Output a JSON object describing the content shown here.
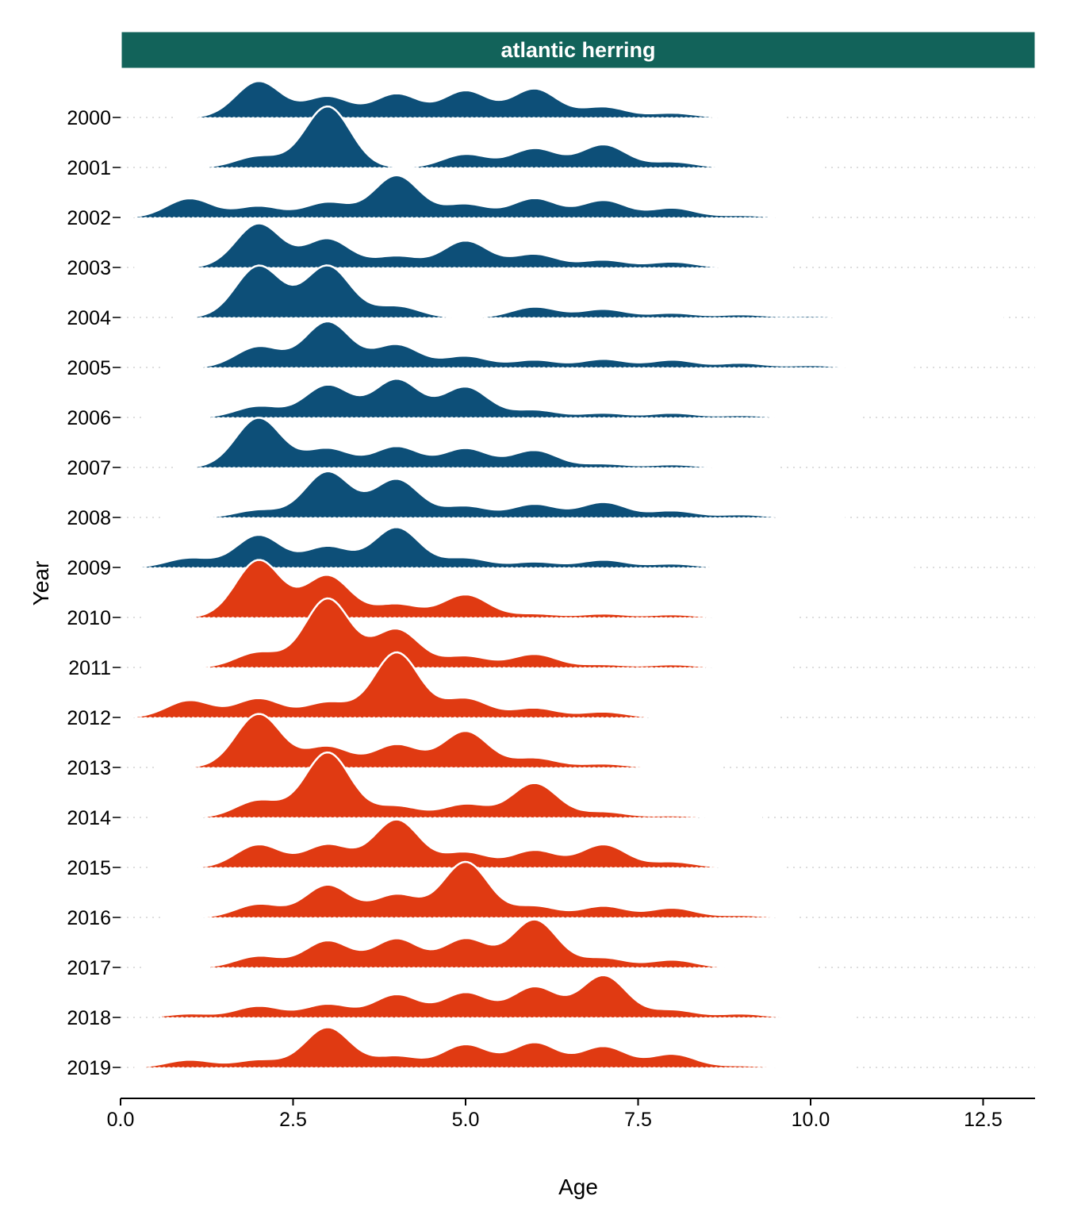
{
  "chart_data": {
    "type": "ridgeline",
    "facet_title": "atlantic herring",
    "xlabel": "Age",
    "ylabel": "Year",
    "xlim": [
      0,
      13.25
    ],
    "x_ticks": [
      "0.0",
      "2.5",
      "5.0",
      "7.5",
      "10.0",
      "12.5"
    ],
    "grid": false,
    "colors": {
      "facet_strip": "#12635a",
      "early_period": "#0d4f78",
      "late_period": "#e03a12",
      "outline": "#ffffff"
    },
    "series": [
      {
        "name": "2000",
        "group": "early",
        "range": [
          0.8,
          9.6
        ],
        "peaks": [
          [
            2.0,
            0.95
          ],
          [
            3.0,
            0.55
          ],
          [
            4.0,
            0.62
          ],
          [
            5.0,
            0.7
          ],
          [
            6.0,
            0.75
          ],
          [
            7.0,
            0.28
          ],
          [
            8.0,
            0.12
          ]
        ]
      },
      {
        "name": "2001",
        "group": "early",
        "range": [
          0.7,
          10.2
        ],
        "peaks": [
          [
            2.0,
            0.3
          ],
          [
            3.0,
            1.6
          ],
          [
            5.0,
            0.35
          ],
          [
            6.0,
            0.5
          ],
          [
            7.0,
            0.6
          ],
          [
            8.0,
            0.15
          ]
        ]
      },
      {
        "name": "2002",
        "group": "early",
        "range": [
          0.0,
          10.0
        ],
        "peaks": [
          [
            1.0,
            0.5
          ],
          [
            2.0,
            0.3
          ],
          [
            3.0,
            0.4
          ],
          [
            4.0,
            1.1
          ],
          [
            5.0,
            0.35
          ],
          [
            6.0,
            0.5
          ],
          [
            7.0,
            0.45
          ],
          [
            8.0,
            0.25
          ],
          [
            9.0,
            0.06
          ]
        ]
      },
      {
        "name": "2003",
        "group": "early",
        "range": [
          0.2,
          9.7
        ],
        "peaks": [
          [
            2.0,
            1.15
          ],
          [
            3.0,
            0.75
          ],
          [
            4.0,
            0.3
          ],
          [
            5.0,
            0.7
          ],
          [
            6.0,
            0.35
          ],
          [
            7.0,
            0.2
          ],
          [
            8.0,
            0.15
          ]
        ]
      },
      {
        "name": "2004",
        "group": "early",
        "range": [
          0.8,
          12.8
        ],
        "peaks": [
          [
            2.0,
            1.35
          ],
          [
            3.0,
            1.35
          ],
          [
            4.0,
            0.3
          ],
          [
            6.0,
            0.28
          ],
          [
            7.0,
            0.22
          ],
          [
            8.0,
            0.12
          ],
          [
            9.0,
            0.08
          ],
          [
            10.0,
            0.04
          ]
        ]
      },
      {
        "name": "2005",
        "group": "early",
        "range": [
          0.6,
          11.5
        ],
        "peaks": [
          [
            2.0,
            0.55
          ],
          [
            3.0,
            1.2
          ],
          [
            4.0,
            0.6
          ],
          [
            5.0,
            0.3
          ],
          [
            6.0,
            0.2
          ],
          [
            7.0,
            0.22
          ],
          [
            8.0,
            0.2
          ],
          [
            9.0,
            0.12
          ],
          [
            10.0,
            0.06
          ]
        ]
      },
      {
        "name": "2006",
        "group": "early",
        "range": [
          0.3,
          10.7
        ],
        "peaks": [
          [
            2.0,
            0.3
          ],
          [
            3.0,
            0.85
          ],
          [
            4.0,
            1.0
          ],
          [
            5.0,
            0.8
          ],
          [
            6.0,
            0.2
          ],
          [
            7.0,
            0.12
          ],
          [
            8.0,
            0.12
          ],
          [
            9.0,
            0.06
          ]
        ]
      },
      {
        "name": "2007",
        "group": "early",
        "range": [
          0.8,
          9.5
        ],
        "peaks": [
          [
            2.0,
            1.3
          ],
          [
            3.0,
            0.5
          ],
          [
            4.0,
            0.55
          ],
          [
            5.0,
            0.5
          ],
          [
            6.0,
            0.45
          ],
          [
            7.0,
            0.1
          ],
          [
            8.0,
            0.08
          ]
        ]
      },
      {
        "name": "2008",
        "group": "early",
        "range": [
          0.6,
          10.5
        ],
        "peaks": [
          [
            2.0,
            0.2
          ],
          [
            3.0,
            1.2
          ],
          [
            4.0,
            1.0
          ],
          [
            5.0,
            0.3
          ],
          [
            6.0,
            0.35
          ],
          [
            7.0,
            0.4
          ],
          [
            8.0,
            0.18
          ],
          [
            9.0,
            0.08
          ]
        ]
      },
      {
        "name": "2009",
        "group": "early",
        "range": [
          0.0,
          11.5
        ],
        "peaks": [
          [
            1.0,
            0.25
          ],
          [
            2.0,
            0.85
          ],
          [
            3.0,
            0.55
          ],
          [
            4.0,
            1.05
          ],
          [
            5.0,
            0.25
          ],
          [
            6.0,
            0.15
          ],
          [
            7.0,
            0.2
          ],
          [
            8.0,
            0.1
          ]
        ]
      },
      {
        "name": "2010",
        "group": "late",
        "range": [
          0.3,
          9.8
        ],
        "peaks": [
          [
            2.0,
            1.5
          ],
          [
            3.0,
            1.1
          ],
          [
            4.0,
            0.35
          ],
          [
            5.0,
            0.6
          ],
          [
            6.0,
            0.1
          ],
          [
            7.0,
            0.1
          ],
          [
            8.0,
            0.08
          ]
        ]
      },
      {
        "name": "2011",
        "group": "late",
        "range": [
          0.3,
          9.7
        ],
        "peaks": [
          [
            2.0,
            0.4
          ],
          [
            3.0,
            1.8
          ],
          [
            4.0,
            1.0
          ],
          [
            5.0,
            0.3
          ],
          [
            6.0,
            0.35
          ],
          [
            7.0,
            0.08
          ],
          [
            8.0,
            0.08
          ]
        ]
      },
      {
        "name": "2012",
        "group": "late",
        "range": [
          0.0,
          9.5
        ],
        "peaks": [
          [
            1.0,
            0.45
          ],
          [
            2.0,
            0.5
          ],
          [
            3.0,
            0.4
          ],
          [
            4.0,
            1.7
          ],
          [
            5.0,
            0.5
          ],
          [
            6.0,
            0.25
          ],
          [
            7.0,
            0.15
          ]
        ]
      },
      {
        "name": "2013",
        "group": "late",
        "range": [
          0.5,
          8.7
        ],
        "peaks": [
          [
            2.0,
            1.4
          ],
          [
            3.0,
            0.55
          ],
          [
            4.0,
            0.6
          ],
          [
            5.0,
            0.95
          ],
          [
            6.0,
            0.25
          ],
          [
            7.0,
            0.1
          ]
        ]
      },
      {
        "name": "2014",
        "group": "late",
        "range": [
          0.4,
          9.3
        ],
        "peaks": [
          [
            2.0,
            0.45
          ],
          [
            3.0,
            1.7
          ],
          [
            4.0,
            0.3
          ],
          [
            5.0,
            0.35
          ],
          [
            6.0,
            0.9
          ],
          [
            7.0,
            0.15
          ],
          [
            8.0,
            0.05
          ]
        ]
      },
      {
        "name": "2015",
        "group": "late",
        "range": [
          0.4,
          9.6
        ],
        "peaks": [
          [
            2.0,
            0.6
          ],
          [
            3.0,
            0.6
          ],
          [
            4.0,
            1.25
          ],
          [
            5.0,
            0.4
          ],
          [
            6.0,
            0.45
          ],
          [
            7.0,
            0.6
          ],
          [
            8.0,
            0.15
          ]
        ]
      },
      {
        "name": "2016",
        "group": "late",
        "range": [
          0.6,
          9.8
        ],
        "peaks": [
          [
            2.0,
            0.35
          ],
          [
            3.0,
            0.85
          ],
          [
            4.0,
            0.6
          ],
          [
            5.0,
            1.45
          ],
          [
            6.0,
            0.3
          ],
          [
            7.0,
            0.3
          ],
          [
            8.0,
            0.25
          ],
          [
            9.0,
            0.06
          ]
        ]
      },
      {
        "name": "2017",
        "group": "late",
        "range": [
          0.3,
          10.1
        ],
        "peaks": [
          [
            2.0,
            0.3
          ],
          [
            3.0,
            0.7
          ],
          [
            4.0,
            0.75
          ],
          [
            5.0,
            0.75
          ],
          [
            6.0,
            1.25
          ],
          [
            7.0,
            0.25
          ],
          [
            8.0,
            0.2
          ]
        ]
      },
      {
        "name": "2018",
        "group": "late",
        "range": [
          0.6,
          10.6
        ],
        "peaks": [
          [
            1.0,
            0.1
          ],
          [
            2.0,
            0.3
          ],
          [
            3.0,
            0.35
          ],
          [
            4.0,
            0.6
          ],
          [
            5.0,
            0.65
          ],
          [
            6.0,
            0.8
          ],
          [
            7.0,
            1.1
          ],
          [
            8.0,
            0.2
          ],
          [
            9.0,
            0.1
          ]
        ]
      },
      {
        "name": "2019",
        "group": "late",
        "range": [
          0.2,
          10.6
        ],
        "peaks": [
          [
            1.0,
            0.2
          ],
          [
            2.0,
            0.2
          ],
          [
            3.0,
            1.05
          ],
          [
            4.0,
            0.3
          ],
          [
            5.0,
            0.6
          ],
          [
            6.0,
            0.65
          ],
          [
            7.0,
            0.55
          ],
          [
            8.0,
            0.35
          ],
          [
            9.0,
            0.05
          ]
        ]
      }
    ]
  }
}
